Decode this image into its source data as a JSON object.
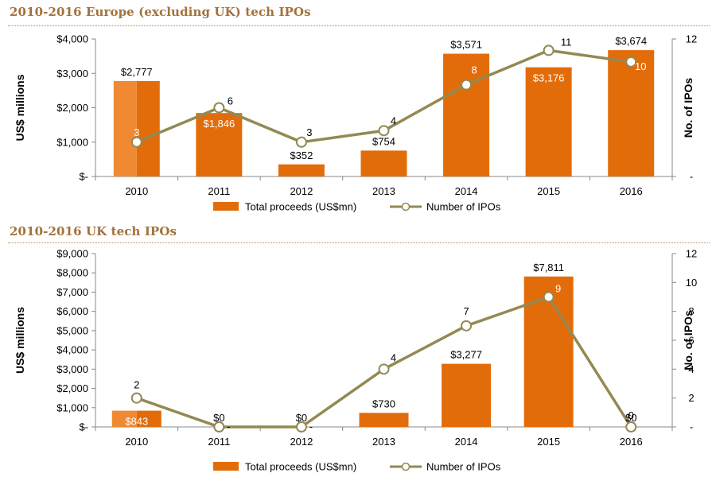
{
  "colors": {
    "bar": "#e36c0a",
    "bar_highlight": "#ef8a33",
    "line": "#938953",
    "title": "#a3713a"
  },
  "chart_data": [
    {
      "type": "bar",
      "title": "2010-2016 Europe (excluding UK) tech IPOs",
      "categories": [
        "2010",
        "2011",
        "2012",
        "2013",
        "2014",
        "2015",
        "2016"
      ],
      "ylabel": "US$ millions",
      "y2label": "No. of IPOs",
      "ylim": [
        0,
        4000
      ],
      "y2lim": [
        0,
        12
      ],
      "yticks": [
        "$-",
        "$1,000",
        "$2,000",
        "$3,000",
        "$4,000"
      ],
      "y2ticks": [
        "-",
        "12"
      ],
      "grid": false,
      "legend_position": "bottom",
      "series": [
        {
          "name": "Total proceeds (US$mn)",
          "type": "bar",
          "axis": "left",
          "values": [
            2777,
            1846,
            352,
            754,
            3571,
            3176,
            3674
          ],
          "labels": [
            "$2,777",
            "$1,846",
            "$352",
            "$754",
            "$3,571",
            "$3,176",
            "$3,674"
          ]
        },
        {
          "name": "Number of IPOs",
          "type": "line",
          "axis": "right",
          "values": [
            3,
            6,
            3,
            4,
            8,
            11,
            10
          ],
          "labels": [
            "3",
            "6",
            "3",
            "4",
            "8",
            "11",
            "10"
          ]
        }
      ]
    },
    {
      "type": "bar",
      "title": "2010-2016 UK tech IPOs",
      "categories": [
        "2010",
        "2011",
        "2012",
        "2013",
        "2014",
        "2015",
        "2016"
      ],
      "ylabel": "US$ millions",
      "y2label": "No. of IPOs",
      "ylim": [
        0,
        9000
      ],
      "y2lim": [
        0,
        12
      ],
      "yticks": [
        "$-",
        "$1,000",
        "$2,000",
        "$3,000",
        "$4,000",
        "$5,000",
        "$6,000",
        "$7,000",
        "$8,000",
        "$9,000"
      ],
      "y2ticks": [
        "-",
        "2",
        "4",
        "6",
        "8",
        "10",
        "12"
      ],
      "grid": false,
      "legend_position": "bottom",
      "series": [
        {
          "name": "Total proceeds (US$mn)",
          "type": "bar",
          "axis": "left",
          "values": [
            843,
            0,
            0,
            730,
            3277,
            7811,
            0
          ],
          "labels": [
            "$843",
            "$0",
            "$0",
            "$730",
            "$3,277",
            "$7,811",
            "$0"
          ]
        },
        {
          "name": "Number of IPOs",
          "type": "line",
          "axis": "right",
          "values": [
            2,
            0,
            0,
            4,
            7,
            9,
            0
          ],
          "labels": [
            "2",
            "-",
            "-",
            "4",
            "7",
            "9",
            "0"
          ]
        }
      ]
    }
  ]
}
